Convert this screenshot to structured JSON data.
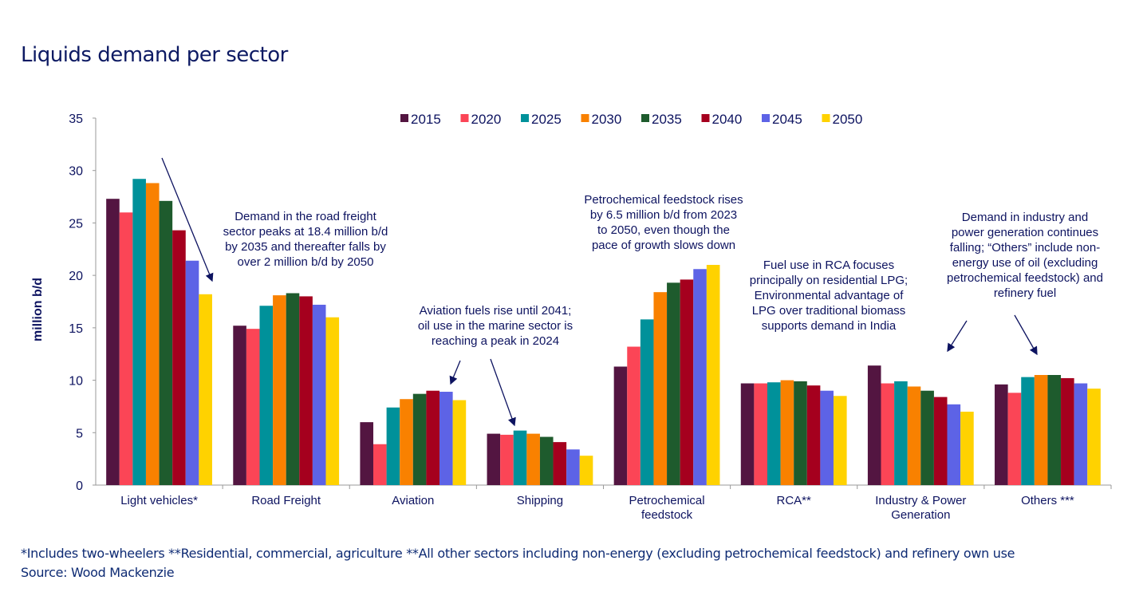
{
  "title": "Liquids demand per sector",
  "chart_data": {
    "type": "bar",
    "ylabel": "million b/d",
    "ylim": [
      0,
      35
    ],
    "yticks": [
      0,
      5,
      10,
      15,
      20,
      25,
      30,
      35
    ],
    "grid": false,
    "legend_position": "top",
    "categories": [
      "Light vehicles*",
      "Road Freight",
      "Aviation",
      "Shipping",
      "Petrochemical\nfeedstock",
      "RCA**",
      "Industry & Power\nGeneration",
      "Others ***"
    ],
    "series": [
      {
        "name": "2015",
        "color": "#531541",
        "values": [
          27.3,
          15.2,
          6.0,
          4.9,
          11.3,
          9.7,
          11.4,
          9.6
        ]
      },
      {
        "name": "2020",
        "color": "#fb4556",
        "values": [
          26.0,
          14.9,
          3.9,
          4.8,
          13.2,
          9.7,
          9.7,
          8.8
        ]
      },
      {
        "name": "2025",
        "color": "#00919a",
        "values": [
          29.2,
          17.1,
          7.4,
          5.2,
          15.8,
          9.8,
          9.9,
          10.3
        ]
      },
      {
        "name": "2030",
        "color": "#f98100",
        "values": [
          28.8,
          18.1,
          8.2,
          4.9,
          18.4,
          10.0,
          9.4,
          10.5
        ]
      },
      {
        "name": "2035",
        "color": "#1e5b2d",
        "values": [
          27.1,
          18.3,
          8.7,
          4.6,
          19.3,
          9.9,
          9.0,
          10.5
        ]
      },
      {
        "name": "2040",
        "color": "#a5001e",
        "values": [
          24.3,
          18.0,
          9.0,
          4.1,
          19.6,
          9.5,
          8.4,
          10.2
        ]
      },
      {
        "name": "2045",
        "color": "#5d63e6",
        "values": [
          21.4,
          17.2,
          8.9,
          3.4,
          20.6,
          9.0,
          7.7,
          9.7
        ]
      },
      {
        "name": "2050",
        "color": "#ffd200",
        "values": [
          18.2,
          16.0,
          8.1,
          2.8,
          21.0,
          8.5,
          7.0,
          9.2
        ]
      }
    ],
    "annotations": [
      "Demand in the road freight\nsector peaks at 18.4 million b/d\nby 2035 and thereafter falls by\nover 2 million b/d by 2050",
      "Aviation fuels rise until 2041;\noil use in the marine sector is\nreaching a peak in 2024",
      "Petrochemical feedstock rises\nby 6.5 million b/d from 2023\nto 2050, even though the\npace of growth slows down",
      "Fuel use in RCA focuses\nprincipally on residential LPG;\nEnvironmental advantage of\nLPG over traditional biomass\nsupports demand in India",
      "Demand in industry and\npower generation continues\nfalling; “Others” include non-\nenergy use of oil (excluding\npetrochemical feedstock) and\nrefinery fuel"
    ]
  },
  "footnote": "*Includes two-wheelers **Residential, commercial, agriculture **All other sectors including non-energy (excluding petrochemical feedstock) and refinery own use",
  "source": "Source: Wood Mackenzie"
}
